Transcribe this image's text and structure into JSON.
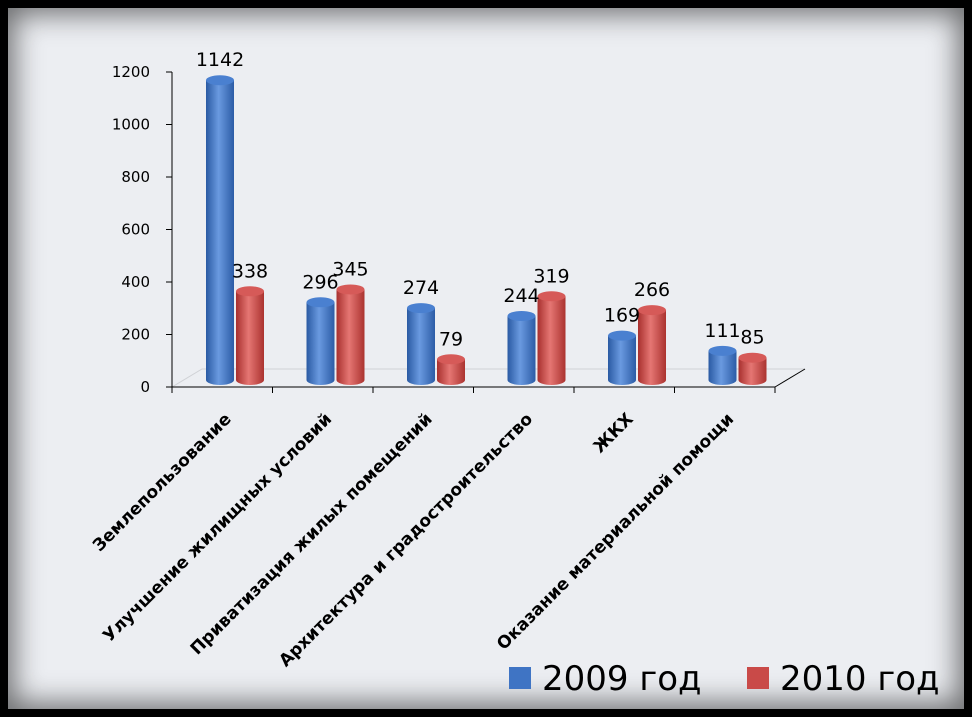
{
  "chart_data": {
    "type": "bar",
    "categories": [
      "Землепользование",
      "Улучшение жилищных условий",
      "Приватизация жилых помещений",
      "Архитектура и градостроительство",
      "ЖКХ",
      "Оказание материальной помощи"
    ],
    "series": [
      {
        "name": "2009 год",
        "values": [
          1142,
          296,
          274,
          244,
          169,
          111
        ],
        "color": "#3f74c4"
      },
      {
        "name": "2010 год",
        "values": [
          338,
          345,
          79,
          319,
          266,
          85
        ],
        "color": "#c94a48"
      }
    ],
    "y_ticks": [
      "0",
      "200",
      "400",
      "600",
      "800",
      "1000",
      "1200"
    ],
    "ylim": [
      0,
      1200
    ],
    "legend_position": "bottom-right",
    "grid": false
  }
}
